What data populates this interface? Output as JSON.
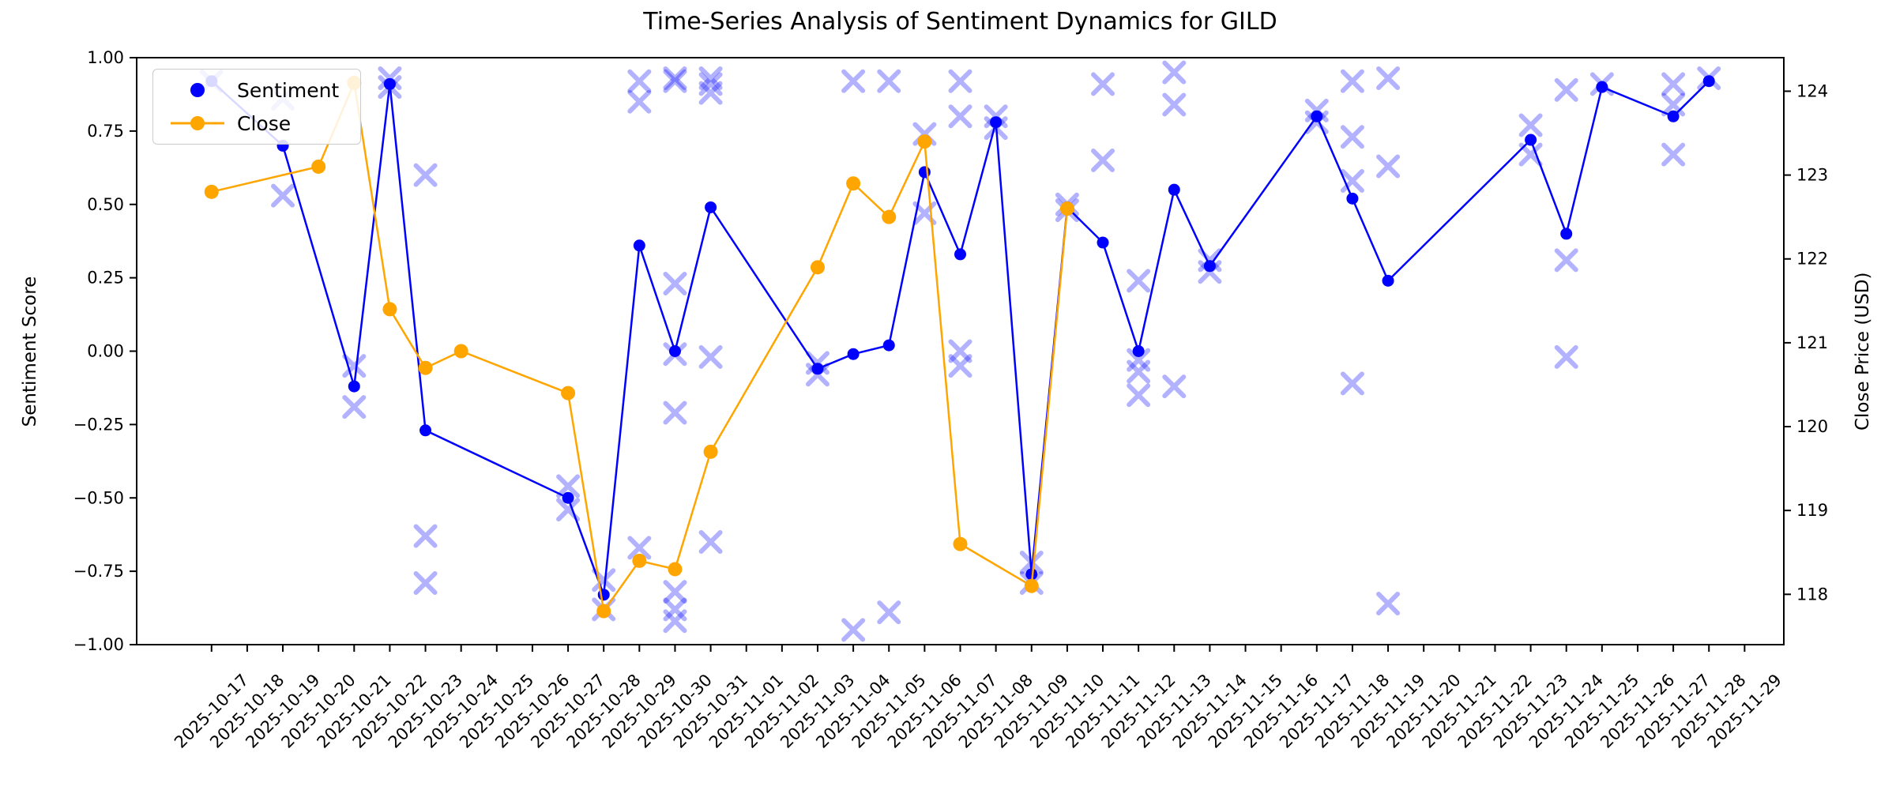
{
  "chart_data": {
    "type": "line",
    "title": "Time-Series Analysis of Sentiment Dynamics for GILD",
    "left_axis": {
      "label": "Sentiment Score",
      "lim": [
        -1.0,
        1.0
      ],
      "ticks": [
        "1.00",
        "0.75",
        "0.50",
        "0.25",
        "0.00",
        "−0.25",
        "−0.50",
        "−0.75",
        "−1.00"
      ],
      "tick_values": [
        1.0,
        0.75,
        0.5,
        0.25,
        0.0,
        -0.25,
        -0.5,
        -0.75,
        -1.0
      ]
    },
    "right_axis": {
      "label": "Close Price (USD)",
      "lim": [
        117.4,
        124.4
      ],
      "ticks": [
        "124",
        "123",
        "122",
        "121",
        "120",
        "119",
        "118"
      ],
      "tick_values": [
        124,
        123,
        122,
        121,
        120,
        119,
        118
      ]
    },
    "x_lim_days": [
      -2.1,
      44.1
    ],
    "grid": false,
    "legend_position": "upper-left",
    "legend": [
      {
        "label": "Sentiment",
        "marker": "dot"
      },
      {
        "label": "Close",
        "marker": "line-dot"
      }
    ],
    "x_tick_labels": [
      "2025-10-17",
      "2025-10-18",
      "2025-10-19",
      "2025-10-20",
      "2025-10-21",
      "2025-10-22",
      "2025-10-23",
      "2025-10-24",
      "2025-10-25",
      "2025-10-26",
      "2025-10-27",
      "2025-10-28",
      "2025-10-29",
      "2025-10-30",
      "2025-10-31",
      "2025-11-01",
      "2025-11-02",
      "2025-11-03",
      "2025-11-04",
      "2025-11-05",
      "2025-11-06",
      "2025-11-07",
      "2025-11-08",
      "2025-11-09",
      "2025-11-10",
      "2025-11-11",
      "2025-11-12",
      "2025-11-13",
      "2025-11-14",
      "2025-11-15",
      "2025-11-16",
      "2025-11-17",
      "2025-11-18",
      "2025-11-19",
      "2025-11-20",
      "2025-11-21",
      "2025-11-22",
      "2025-11-23",
      "2025-11-24",
      "2025-11-25",
      "2025-11-26",
      "2025-11-27",
      "2025-11-28",
      "2025-11-29"
    ],
    "series": [
      {
        "name": "Sentiment",
        "axis": "left",
        "color": "#0000ff",
        "line_width": 2.5,
        "marker_r": 7.5,
        "points": [
          [
            "2025-10-17",
            0.92
          ],
          [
            "2025-10-19",
            0.7
          ],
          [
            "2025-10-21",
            -0.12
          ],
          [
            "2025-10-22",
            0.91
          ],
          [
            "2025-10-23",
            -0.27
          ],
          [
            "2025-10-27",
            -0.5
          ],
          [
            "2025-10-28",
            -0.83
          ],
          [
            "2025-10-29",
            0.36
          ],
          [
            "2025-10-30",
            0.0
          ],
          [
            "2025-10-31",
            0.49
          ],
          [
            "2025-11-03",
            -0.06
          ],
          [
            "2025-11-04",
            -0.01
          ],
          [
            "2025-11-05",
            0.02
          ],
          [
            "2025-11-06",
            0.61
          ],
          [
            "2025-11-07",
            0.33
          ],
          [
            "2025-11-08",
            0.78
          ],
          [
            "2025-11-09",
            -0.76
          ],
          [
            "2025-11-10",
            0.49
          ],
          [
            "2025-11-11",
            0.37
          ],
          [
            "2025-11-12",
            0.0
          ],
          [
            "2025-11-13",
            0.55
          ],
          [
            "2025-11-14",
            0.29
          ],
          [
            "2025-11-17",
            0.8
          ],
          [
            "2025-11-18",
            0.52
          ],
          [
            "2025-11-19",
            0.24
          ],
          [
            "2025-11-23",
            0.72
          ],
          [
            "2025-11-24",
            0.4
          ],
          [
            "2025-11-25",
            0.9
          ],
          [
            "2025-11-27",
            0.8
          ],
          [
            "2025-11-28",
            0.92
          ]
        ]
      },
      {
        "name": "Close",
        "axis": "right",
        "color": "#ffa500",
        "line_width": 2.5,
        "marker_r": 9,
        "points": [
          [
            "2025-10-17",
            122.8
          ],
          [
            "2025-10-20",
            123.1
          ],
          [
            "2025-10-21",
            124.1
          ],
          [
            "2025-10-22",
            121.4
          ],
          [
            "2025-10-23",
            120.7
          ],
          [
            "2025-10-24",
            120.9
          ],
          [
            "2025-10-27",
            120.4
          ],
          [
            "2025-10-28",
            117.8
          ],
          [
            "2025-10-29",
            118.4
          ],
          [
            "2025-10-30",
            118.3
          ],
          [
            "2025-10-31",
            119.7
          ],
          [
            "2025-11-03",
            121.9
          ],
          [
            "2025-11-04",
            122.9
          ],
          [
            "2025-11-05",
            122.5
          ],
          [
            "2025-11-06",
            123.4
          ],
          [
            "2025-11-07",
            118.6
          ],
          [
            "2025-11-09",
            118.1
          ],
          [
            "2025-11-10",
            122.6
          ]
        ]
      }
    ],
    "scatter": {
      "name": "raw-sentiment-x",
      "axis": "left",
      "color": "#0000ff",
      "opacity": 0.3,
      "size": 24,
      "points": [
        [
          "2025-10-17",
          0.92
        ],
        [
          "2025-10-19",
          0.86
        ],
        [
          "2025-10-19",
          0.53
        ],
        [
          "2025-10-21",
          -0.05
        ],
        [
          "2025-10-21",
          -0.19
        ],
        [
          "2025-10-22",
          0.93
        ],
        [
          "2025-10-22",
          0.9
        ],
        [
          "2025-10-23",
          0.6
        ],
        [
          "2025-10-23",
          -0.63
        ],
        [
          "2025-10-23",
          -0.79
        ],
        [
          "2025-10-27",
          -0.46
        ],
        [
          "2025-10-27",
          -0.54
        ],
        [
          "2025-10-28",
          -0.78
        ],
        [
          "2025-10-28",
          -0.88
        ],
        [
          "2025-10-29",
          0.92
        ],
        [
          "2025-10-29",
          0.85
        ],
        [
          "2025-10-29",
          -0.67
        ],
        [
          "2025-10-30",
          0.93
        ],
        [
          "2025-10-30",
          0.92
        ],
        [
          "2025-10-30",
          0.23
        ],
        [
          "2025-10-30",
          -0.01
        ],
        [
          "2025-10-30",
          -0.21
        ],
        [
          "2025-10-30",
          -0.82
        ],
        [
          "2025-10-30",
          -0.88
        ],
        [
          "2025-10-30",
          -0.92
        ],
        [
          "2025-10-31",
          0.93
        ],
        [
          "2025-10-31",
          0.91
        ],
        [
          "2025-10-31",
          0.88
        ],
        [
          "2025-10-31",
          -0.02
        ],
        [
          "2025-10-31",
          -0.65
        ],
        [
          "2025-11-03",
          -0.04
        ],
        [
          "2025-11-03",
          -0.08
        ],
        [
          "2025-11-04",
          0.92
        ],
        [
          "2025-11-04",
          -0.95
        ],
        [
          "2025-11-05",
          0.92
        ],
        [
          "2025-11-05",
          -0.89
        ],
        [
          "2025-11-06",
          0.74
        ],
        [
          "2025-11-06",
          0.47
        ],
        [
          "2025-11-07",
          0.92
        ],
        [
          "2025-11-07",
          0.8
        ],
        [
          "2025-11-07",
          0.0
        ],
        [
          "2025-11-07",
          -0.05
        ],
        [
          "2025-11-08",
          0.8
        ],
        [
          "2025-11-08",
          0.76
        ],
        [
          "2025-11-09",
          -0.72
        ],
        [
          "2025-11-09",
          -0.79
        ],
        [
          "2025-11-10",
          0.5
        ],
        [
          "2025-11-10",
          0.48
        ],
        [
          "2025-11-11",
          0.91
        ],
        [
          "2025-11-11",
          0.65
        ],
        [
          "2025-11-12",
          0.24
        ],
        [
          "2025-11-12",
          -0.03
        ],
        [
          "2025-11-12",
          -0.07
        ],
        [
          "2025-11-12",
          -0.15
        ],
        [
          "2025-11-13",
          0.95
        ],
        [
          "2025-11-13",
          0.84
        ],
        [
          "2025-11-13",
          -0.12
        ],
        [
          "2025-11-14",
          0.31
        ],
        [
          "2025-11-14",
          0.27
        ],
        [
          "2025-11-17",
          0.82
        ],
        [
          "2025-11-17",
          0.78
        ],
        [
          "2025-11-18",
          0.92
        ],
        [
          "2025-11-18",
          0.73
        ],
        [
          "2025-11-18",
          0.58
        ],
        [
          "2025-11-18",
          -0.11
        ],
        [
          "2025-11-19",
          0.93
        ],
        [
          "2025-11-19",
          0.63
        ],
        [
          "2025-11-19",
          -0.86
        ],
        [
          "2025-11-23",
          0.77
        ],
        [
          "2025-11-23",
          0.67
        ],
        [
          "2025-11-24",
          0.89
        ],
        [
          "2025-11-24",
          0.31
        ],
        [
          "2025-11-24",
          -0.02
        ],
        [
          "2025-11-25",
          0.91
        ],
        [
          "2025-11-27",
          0.91
        ],
        [
          "2025-11-27",
          0.84
        ],
        [
          "2025-11-27",
          0.67
        ],
        [
          "2025-11-28",
          0.93
        ]
      ]
    }
  }
}
